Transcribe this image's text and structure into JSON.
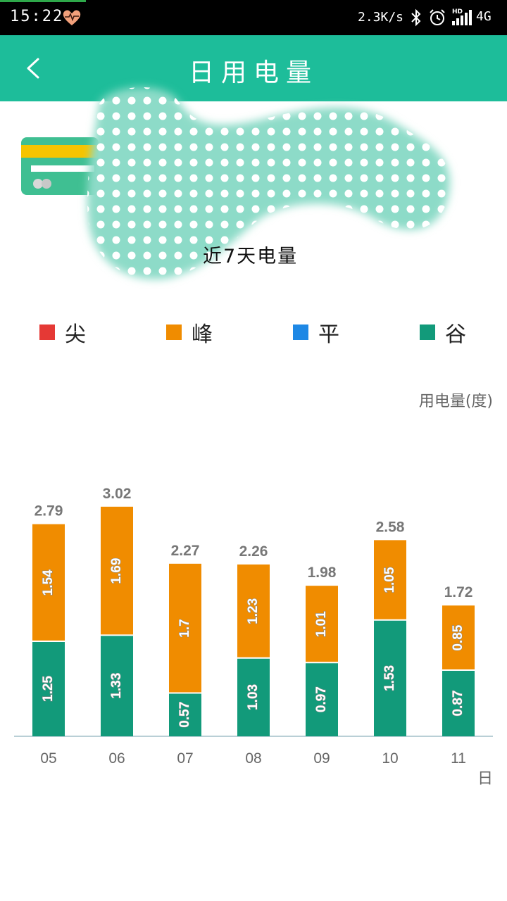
{
  "status_bar": {
    "time": "15:22",
    "net_speed": "2.3K/s",
    "network": "4G"
  },
  "header": {
    "title": "日用电量",
    "back_icon": "chevron-left-icon"
  },
  "section": {
    "title": "近7天电量"
  },
  "legend": [
    {
      "label": "尖",
      "color": "#e53935"
    },
    {
      "label": "峰",
      "color": "#f08c00"
    },
    {
      "label": "平",
      "color": "#1e88e5"
    },
    {
      "label": "谷",
      "color": "#129a7a"
    }
  ],
  "chart_data": {
    "type": "bar",
    "stacked": true,
    "categories": [
      "05",
      "06",
      "07",
      "08",
      "09",
      "10",
      "11"
    ],
    "series": [
      {
        "name": "谷",
        "color": "#129a7a",
        "values": [
          1.25,
          1.33,
          0.57,
          1.03,
          0.97,
          1.53,
          0.87
        ]
      },
      {
        "name": "峰",
        "color": "#f08c00",
        "values": [
          1.54,
          1.69,
          1.7,
          1.23,
          1.01,
          1.05,
          0.85
        ]
      }
    ],
    "segment_labels": [
      [
        "1.25",
        "1.33",
        "0.57",
        "1.03",
        "0.97",
        "1.53",
        "0.87"
      ],
      [
        "1.54",
        "1.69",
        "1.7",
        "1.23",
        "1.01",
        "1.05",
        "0.85"
      ]
    ],
    "totals": [
      "2.79",
      "3.02",
      "2.27",
      "2.26",
      "1.98",
      "2.58",
      "1.72"
    ],
    "ylabel": "用电量(度)",
    "xlabel": "日",
    "ylim": [
      0,
      3.2
    ],
    "grid": false
  }
}
